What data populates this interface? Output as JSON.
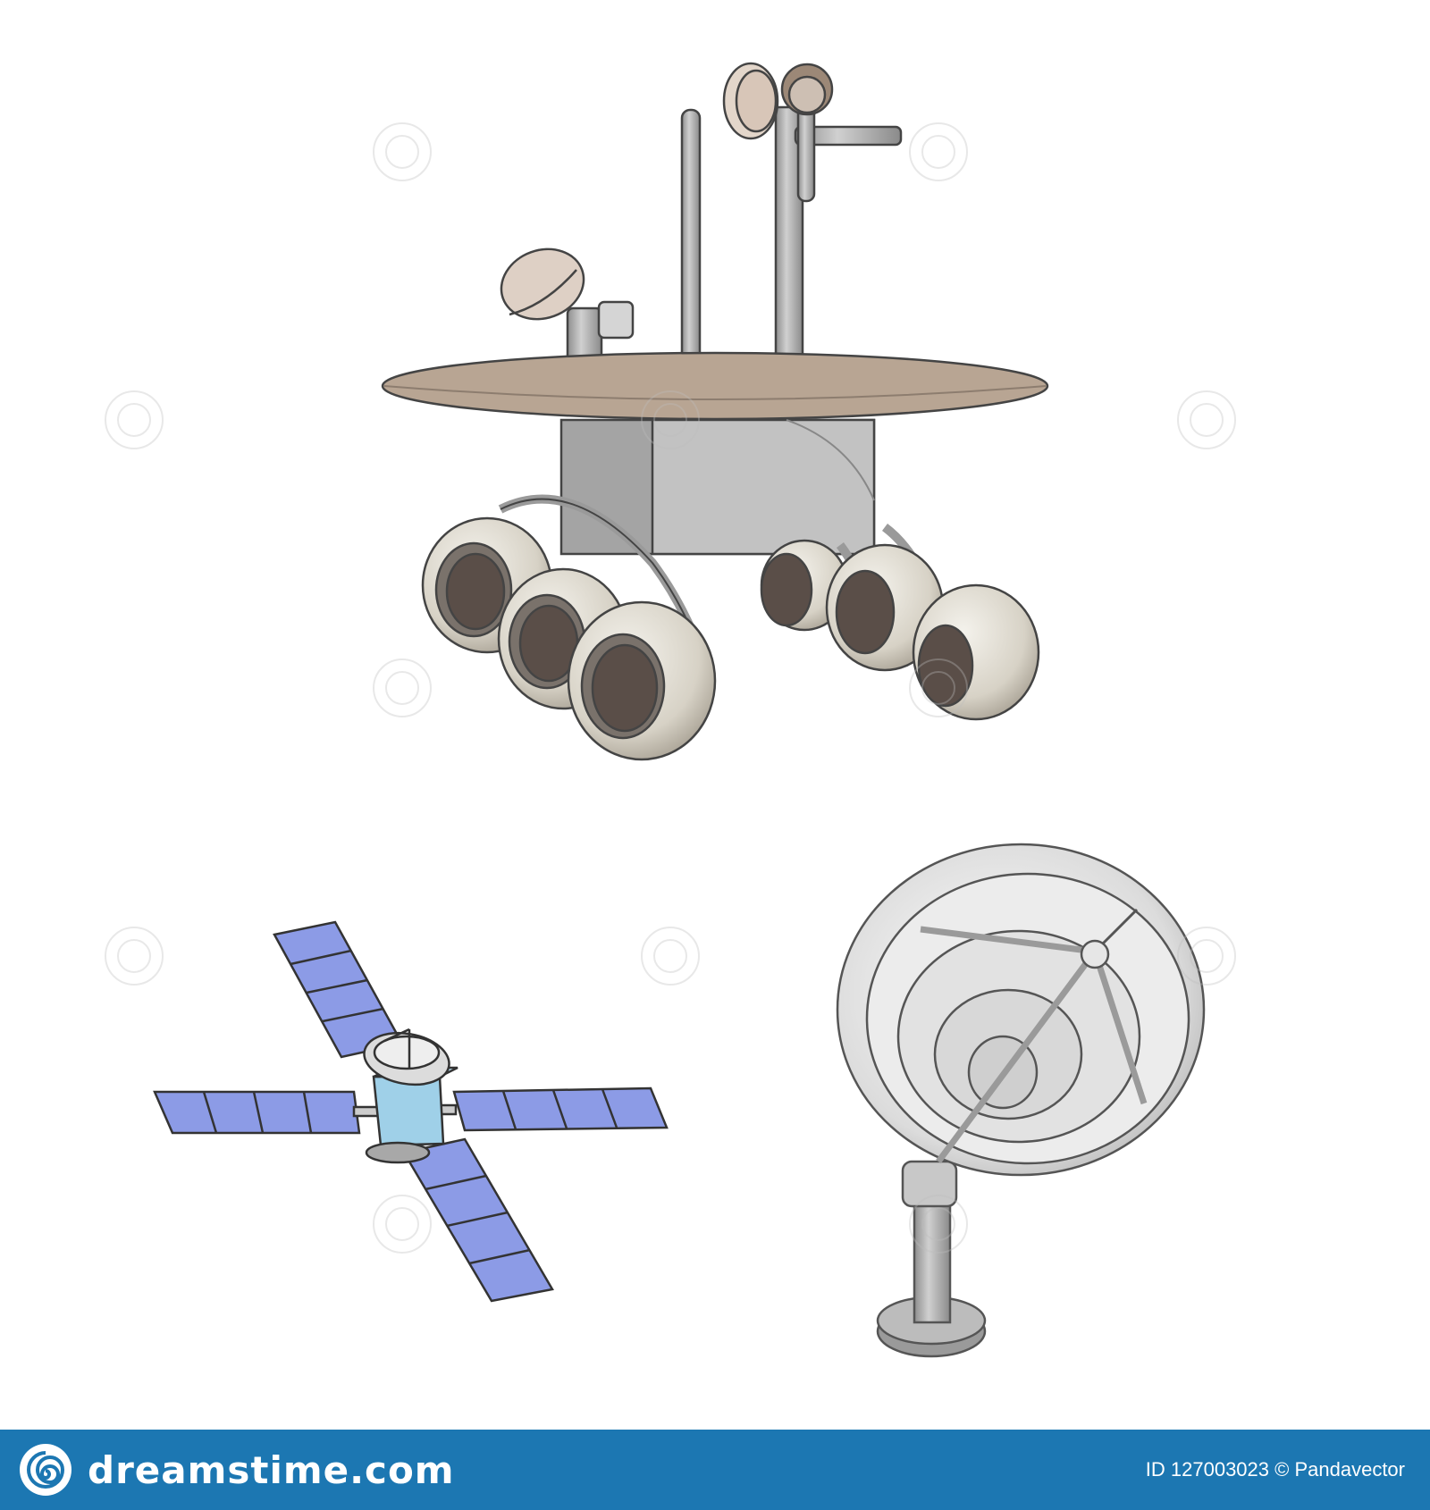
{
  "footer": {
    "brand": "dreamstime.com",
    "image_id": "ID 127003023",
    "author": "© Pandavector"
  },
  "watermark": {
    "text": "dreamstime"
  },
  "colors": {
    "footer_bg": "#1c77b2",
    "panel_blue": "#8c9be6",
    "rover_deck": "#b8a593",
    "metal": "#a6a6a6"
  },
  "icons": [
    "mars-rover-icon",
    "satellite-icon",
    "radio-telescope-dish-icon"
  ]
}
